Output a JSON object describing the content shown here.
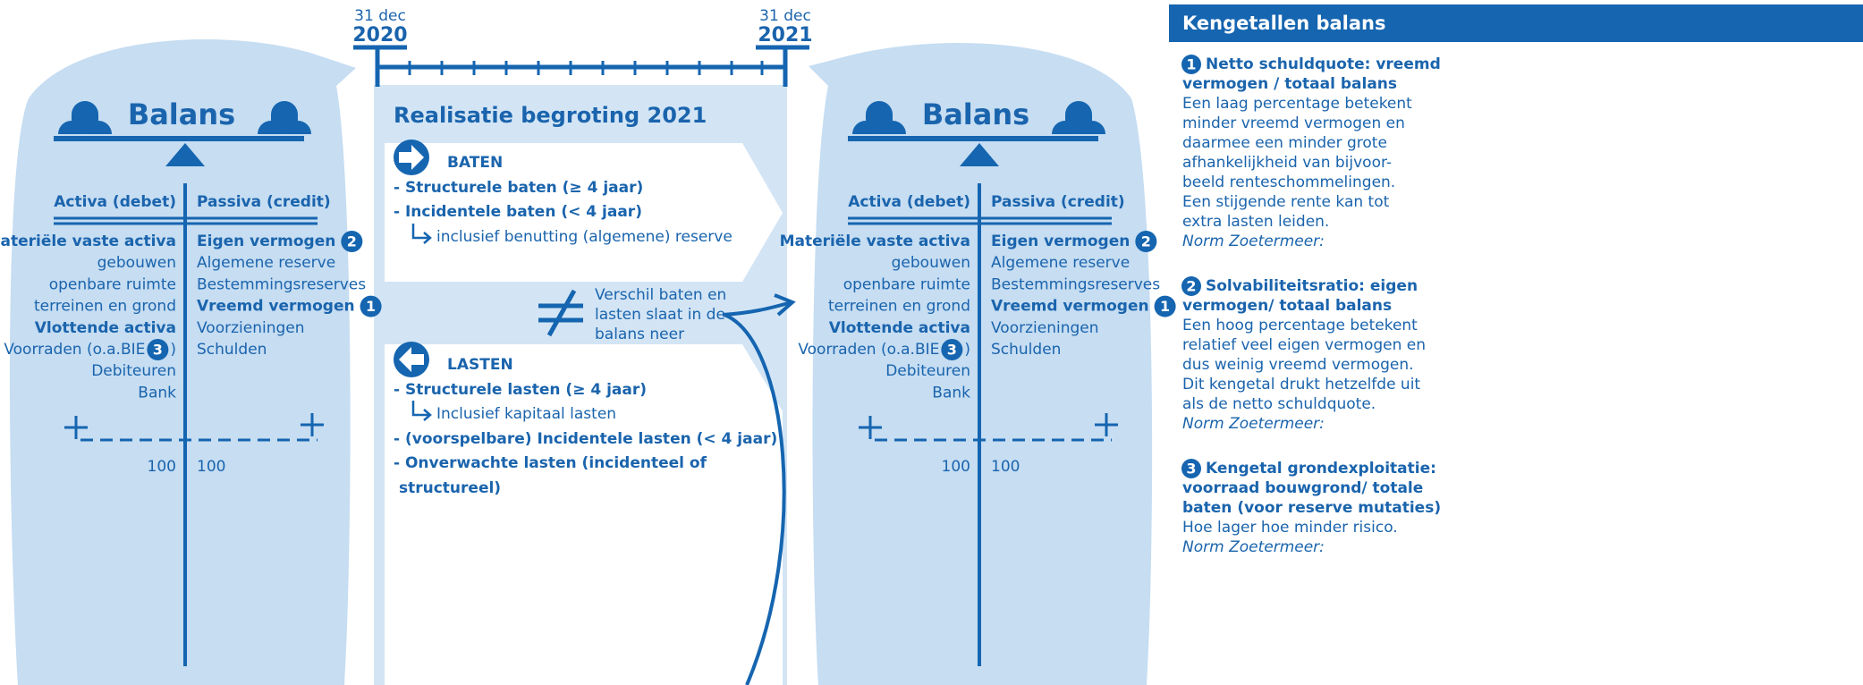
{
  "timeline": {
    "start": {
      "day": "31 dec",
      "year": "2020"
    },
    "end": {
      "day": "31 dec",
      "year": "2021"
    }
  },
  "balances": [
    {
      "title": "Balans",
      "activa_header": "Activa (debet)",
      "passiva_header": "Passiva (credit)",
      "activa": [
        {
          "text": "Materiële vaste activa",
          "bold": true
        },
        {
          "text": "gebouwen"
        },
        {
          "text": "openbare ruimte"
        },
        {
          "text": "terreinen en grond"
        },
        {
          "text": "Vlottende activa",
          "bold": true
        },
        {
          "text": "Voorraden (o.a.BIE",
          "badge": "3",
          "suffix": ")"
        },
        {
          "text": "Debiteuren"
        },
        {
          "text": "Bank"
        }
      ],
      "passiva": [
        {
          "text": "Eigen vermogen",
          "bold": true,
          "badge": "2"
        },
        {
          "text": "Algemene reserve"
        },
        {
          "text": "Bestemmingsreserves"
        },
        {
          "text": "Vreemd vermogen",
          "bold": true,
          "badge": "1"
        },
        {
          "text": "Voorzieningen"
        },
        {
          "text": "Schulden"
        }
      ],
      "totals": {
        "activa": "100",
        "passiva": "100"
      }
    },
    {
      "title": "Balans",
      "activa_header": "Activa (debet)",
      "passiva_header": "Passiva (credit)",
      "activa": [
        {
          "text": "Materiële vaste activa",
          "bold": true
        },
        {
          "text": "gebouwen"
        },
        {
          "text": "openbare ruimte"
        },
        {
          "text": "terreinen en grond"
        },
        {
          "text": "Vlottende activa",
          "bold": true
        },
        {
          "text": "Voorraden (o.a.BIE",
          "badge": "3",
          "suffix": ")"
        },
        {
          "text": "Debiteuren"
        },
        {
          "text": "Bank"
        }
      ],
      "passiva": [
        {
          "text": "Eigen vermogen",
          "bold": true,
          "badge": "2"
        },
        {
          "text": "Algemene reserve"
        },
        {
          "text": "Bestemmingsreserves"
        },
        {
          "text": "Vreemd vermogen",
          "bold": true,
          "badge": "1"
        },
        {
          "text": "Voorzieningen"
        },
        {
          "text": "Schulden"
        }
      ],
      "totals": {
        "activa": "100",
        "passiva": "100"
      }
    }
  ],
  "realisatie": {
    "title": "Realisatie begroting 2021",
    "baten": {
      "heading": "BATEN",
      "items": [
        "- Structurele baten (≥ 4 jaar)",
        "- Incidentele baten (< 4 jaar)"
      ],
      "sub": "inclusief benutting (algemene) reserve"
    },
    "note": [
      "Verschil baten en",
      "lasten slaat in de",
      "balans neer"
    ],
    "lasten": {
      "heading": "LASTEN",
      "items": [
        "- Structurele lasten (≥ 4 jaar)",
        "- (voorspelbare) Incidentele lasten (< 4 jaar)",
        "- Onverwachte lasten (incidenteel of",
        "structureel)"
      ],
      "sub": "Inclusief kapitaal lasten"
    }
  },
  "kengetallen": {
    "title": "Kengetallen balans",
    "items": [
      {
        "number": "1",
        "heading": [
          "Netto schuldquote: vreemd",
          "vermogen / totaal balans"
        ],
        "body": [
          "Een laag percentage betekent",
          "minder vreemd vermogen en",
          "daarmee een minder grote",
          "afhankelijkheid van bijvoor-",
          "beeld renteschommelingen.",
          "Een stijgende rente kan tot",
          "extra lasten leiden."
        ],
        "norm": "Norm Zoetermeer:"
      },
      {
        "number": "2",
        "heading": [
          "Solvabiliteitsratio: eigen",
          "vermogen/ totaal balans"
        ],
        "body": [
          "Een hoog percentage betekent",
          "relatief veel eigen vermogen en",
          "dus weinig vreemd vermogen.",
          "Dit kengetal drukt hetzelfde uit",
          "als de netto schuldquote."
        ],
        "norm": "Norm Zoetermeer:"
      },
      {
        "number": "3",
        "heading": [
          "Kengetal grondexploitatie:",
          "voorraad bouwgrond/ totale",
          "baten (voor reserve mutaties)"
        ],
        "body": [
          "Hoe lager hoe minder risico."
        ],
        "norm": "Norm Zoetermeer:"
      }
    ]
  }
}
